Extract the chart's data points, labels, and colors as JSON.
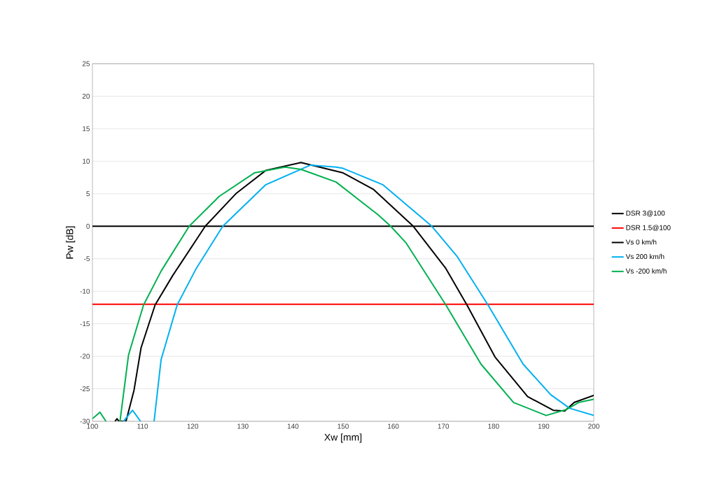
{
  "chart_data": {
    "type": "line",
    "xlabel": "Xw [mm]",
    "ylabel": "Pw [dB]",
    "xlim": [
      100,
      200
    ],
    "ylim": [
      -30,
      25
    ],
    "xticks": [
      100,
      110,
      120,
      130,
      140,
      150,
      160,
      170,
      180,
      190,
      200
    ],
    "yticks": [
      -30,
      -25,
      -20,
      -15,
      -10,
      -5,
      0,
      5,
      10,
      15,
      20,
      25
    ],
    "grid": "y",
    "legend": "right",
    "series": [
      {
        "name": "DSR 3@100",
        "color": "#000000",
        "x": [
          100,
          200
        ],
        "values": [
          0,
          0
        ]
      },
      {
        "name": "DSR 1.5@100",
        "color": "#ff0000",
        "x": [
          100,
          200
        ],
        "values": [
          -12,
          -12
        ]
      },
      {
        "name": "Vs 0 km/h",
        "color": "#000000",
        "x": [
          104.5,
          104.9,
          105.3,
          106.7,
          108.3,
          109.7,
          112.5,
          116,
          122.5,
          128.6,
          134.6,
          141.6,
          150,
          156,
          164,
          170.5,
          174.7,
          180.3,
          186.8,
          191.9,
          194.2,
          196.1,
          200
        ],
        "values": [
          -30,
          -29.6,
          -30,
          -30,
          -25.2,
          -18.7,
          -12.1,
          -7.6,
          0,
          5,
          8.6,
          9.8,
          8.2,
          5.7,
          0,
          -6.5,
          -12.1,
          -20.1,
          -26.2,
          -28.3,
          -28.4,
          -27.1,
          -26
        ]
      },
      {
        "name": "Vs 200 km/h",
        "color": "#00b0f0",
        "x": [
          106.2,
          108,
          109.6,
          110,
          112.3,
          113.7,
          116.9,
          120.7,
          126,
          134.6,
          143.5,
          148.6,
          150,
          157.9,
          167.7,
          172.8,
          178.9,
          185.9,
          191.4,
          195.2,
          200
        ],
        "values": [
          -30,
          -28.3,
          -30,
          null,
          -30,
          -20.5,
          -12.1,
          -6.5,
          0,
          6.4,
          9.4,
          9.1,
          8.9,
          6.4,
          0,
          -4.7,
          -12.1,
          -21.2,
          -25.9,
          -28,
          -29.1
        ]
      },
      {
        "name": "Vs -200 km/h",
        "color": "#00b050",
        "x": [
          100,
          101.5,
          102.7,
          104,
          105.5,
          107.2,
          108.6,
          110.2,
          113.7,
          119.3,
          125.3,
          132.3,
          138.4,
          141.6,
          148.6,
          157,
          159.5,
          162.6,
          170.5,
          177.5,
          184,
          190.5,
          194.5,
          197,
          200
        ],
        "values": [
          -29.6,
          -28.6,
          -30,
          null,
          -30,
          -19.8,
          -16.2,
          -12.1,
          -6.9,
          0,
          4.6,
          8.2,
          9.1,
          8.75,
          6.8,
          1.75,
          0,
          -2.6,
          -12.1,
          -21.2,
          -27.1,
          -29.1,
          -28.2,
          -27.1,
          -26.6
        ]
      }
    ]
  }
}
